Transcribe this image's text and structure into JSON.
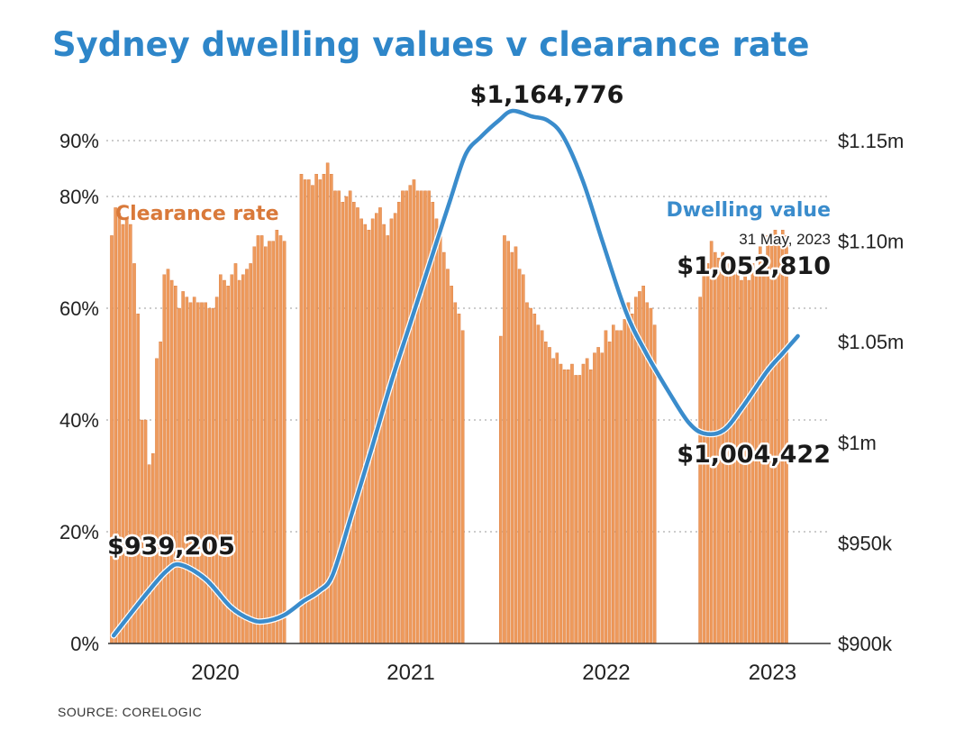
{
  "colors": {
    "title": "#2e86c9",
    "bar": "#ee9a5c",
    "bar_edge": "#d9793a",
    "line": "#3a8ccc",
    "grid": "#bbbbbb"
  },
  "chart_data": {
    "type": "bar+line",
    "title": "Sydney dwelling values v clearance rate",
    "source": "SOURCE: CORELOGIC",
    "x_ticks": [
      {
        "label": "2020",
        "x": 2020.3
      },
      {
        "label": "2021",
        "x": 2021.3
      },
      {
        "label": "2022",
        "x": 2022.3
      },
      {
        "label": "2023",
        "x": 2023.15
      }
    ],
    "x_range": [
      2019.77,
      2023.42
    ],
    "left_axis": {
      "label": "",
      "ylim": [
        0,
        100
      ],
      "ticks": [
        0,
        20,
        40,
        60,
        80,
        90
      ],
      "tick_labels": [
        "0%",
        "20%",
        "40%",
        "60%",
        "80%",
        "90%"
      ]
    },
    "right_axis": {
      "label": "",
      "ylim": [
        900000,
        1175000
      ],
      "ticks": [
        900000,
        950000,
        1000000,
        1050000,
        1100000,
        1150000
      ],
      "tick_labels": [
        "$900k",
        "$950k",
        "$1m",
        "$1.05m",
        "$1.10m",
        "$1.15m"
      ]
    },
    "bars": {
      "name": "Clearance rate",
      "axis": "left",
      "start": 2019.77,
      "step": 0.0192,
      "values": [
        73,
        78,
        77,
        75,
        76,
        75,
        68,
        59,
        40,
        40,
        32,
        34,
        51,
        54,
        66,
        67,
        65,
        64,
        60,
        63,
        62,
        61,
        62,
        61,
        61,
        61,
        60,
        60,
        62,
        66,
        65,
        64,
        66,
        68,
        65,
        66,
        67,
        68,
        71,
        73,
        73,
        71,
        72,
        72,
        74,
        73,
        72,
        null,
        null,
        null,
        null,
        null,
        null,
        null,
        null,
        null,
        null,
        null,
        null,
        null,
        null,
        null,
        null,
        null,
        null,
        null,
        null,
        null,
        null,
        null,
        null,
        null,
        null,
        null,
        null,
        null,
        null,
        null,
        null,
        null,
        null,
        null,
        null,
        null,
        null,
        null,
        null,
        null,
        null,
        null,
        null,
        null,
        null,
        null,
        null,
        null,
        null,
        null,
        null,
        null,
        null,
        null,
        null,
        null,
        null,
        null,
        null,
        null,
        null,
        null,
        null,
        null,
        null,
        null,
        null,
        null,
        null,
        null,
        null,
        null,
        null,
        null,
        null,
        null,
        null,
        null,
        null,
        null,
        null,
        null,
        null,
        null,
        null,
        null,
        null,
        null,
        null,
        null,
        null,
        null,
        null,
        null,
        null,
        null,
        null,
        null,
        null,
        null,
        null,
        null,
        null,
        null,
        null,
        null,
        null,
        null,
        null,
        null,
        null,
        null,
        null,
        null,
        null,
        null,
        null,
        null,
        null,
        null,
        null,
        null,
        null,
        null,
        null,
        null,
        null,
        null,
        null,
        null,
        null,
        null,
        null,
        null,
        null,
        null,
        null,
        null,
        null,
        null,
        null,
        null
      ],
      "segments": [
        {
          "start": 2019.77,
          "values": [
            73,
            78,
            77,
            75,
            76,
            75,
            68,
            59,
            40,
            40,
            32,
            34,
            51,
            54,
            66,
            67,
            65,
            64,
            60,
            63,
            62,
            61,
            62,
            61,
            61,
            61,
            60,
            60,
            62,
            66,
            65,
            64,
            66,
            68,
            65,
            66,
            67,
            68,
            71,
            73,
            73,
            71,
            72,
            72,
            74,
            73,
            72
          ]
        },
        {
          "start": 2020.74,
          "values": [
            84,
            83,
            83,
            82,
            84,
            83,
            84,
            86,
            84,
            81,
            81,
            79,
            80,
            81,
            79,
            78,
            76,
            75,
            74,
            76,
            77,
            78,
            75,
            73,
            76,
            77,
            79,
            81,
            81,
            82,
            83,
            81,
            81,
            81,
            81,
            79,
            76,
            73,
            70,
            67,
            64,
            61,
            59,
            56
          ]
        },
        {
          "start": 2021.76,
          "values": [
            55,
            73,
            72,
            70,
            71,
            67,
            66,
            61,
            60,
            59,
            57,
            56,
            54,
            53,
            51,
            52,
            50,
            49,
            49,
            50,
            48,
            48,
            50,
            51,
            49,
            52,
            53,
            52,
            56,
            54,
            57,
            56,
            56,
            58,
            61,
            59,
            62,
            63,
            64,
            61,
            60,
            57
          ]
        },
        {
          "start": 2022.78,
          "values": [
            62,
            66,
            68,
            72,
            70,
            69,
            70,
            68,
            68,
            66,
            68,
            65,
            67,
            65,
            68,
            67,
            71,
            69,
            73,
            72,
            74,
            73,
            74,
            73
          ]
        }
      ]
    },
    "line": {
      "name": "Dwelling value",
      "axis": "right",
      "points": [
        [
          2019.78,
          904000
        ],
        [
          2019.95,
          925000
        ],
        [
          2020.05,
          936000
        ],
        [
          2020.12,
          939205
        ],
        [
          2020.25,
          932000
        ],
        [
          2020.38,
          918000
        ],
        [
          2020.48,
          912000
        ],
        [
          2020.55,
          911000
        ],
        [
          2020.65,
          914000
        ],
        [
          2020.75,
          921000
        ],
        [
          2020.83,
          926000
        ],
        [
          2020.9,
          934000
        ],
        [
          2021.0,
          965000
        ],
        [
          2021.1,
          997000
        ],
        [
          2021.2,
          1030000
        ],
        [
          2021.3,
          1060000
        ],
        [
          2021.4,
          1090000
        ],
        [
          2021.5,
          1120000
        ],
        [
          2021.58,
          1143000
        ],
        [
          2021.66,
          1152000
        ],
        [
          2021.75,
          1160000
        ],
        [
          2021.82,
          1164776
        ],
        [
          2021.92,
          1162000
        ],
        [
          2022.0,
          1160000
        ],
        [
          2022.08,
          1152000
        ],
        [
          2022.18,
          1130000
        ],
        [
          2022.28,
          1100000
        ],
        [
          2022.4,
          1065000
        ],
        [
          2022.5,
          1045000
        ],
        [
          2022.62,
          1025000
        ],
        [
          2022.72,
          1010000
        ],
        [
          2022.8,
          1004422
        ],
        [
          2022.9,
          1006000
        ],
        [
          2023.0,
          1018000
        ],
        [
          2023.12,
          1035000
        ],
        [
          2023.2,
          1044000
        ],
        [
          2023.28,
          1052810
        ]
      ]
    },
    "annotations": [
      {
        "text": "$939,205",
        "x": 2020.12,
        "y": 939205,
        "axis": "right"
      },
      {
        "text": "$1,164,776",
        "x": 2021.82,
        "y": 1164776,
        "axis": "right"
      },
      {
        "text": "$1,004,422",
        "x": 2022.8,
        "y": 1004422,
        "axis": "right"
      },
      {
        "text": "$1,052,810",
        "x": 2023.28,
        "y": 1052810,
        "axis": "right",
        "note": "31 May, 2023"
      }
    ],
    "grid": "horizontal dotted",
    "legend": "inline labels"
  }
}
